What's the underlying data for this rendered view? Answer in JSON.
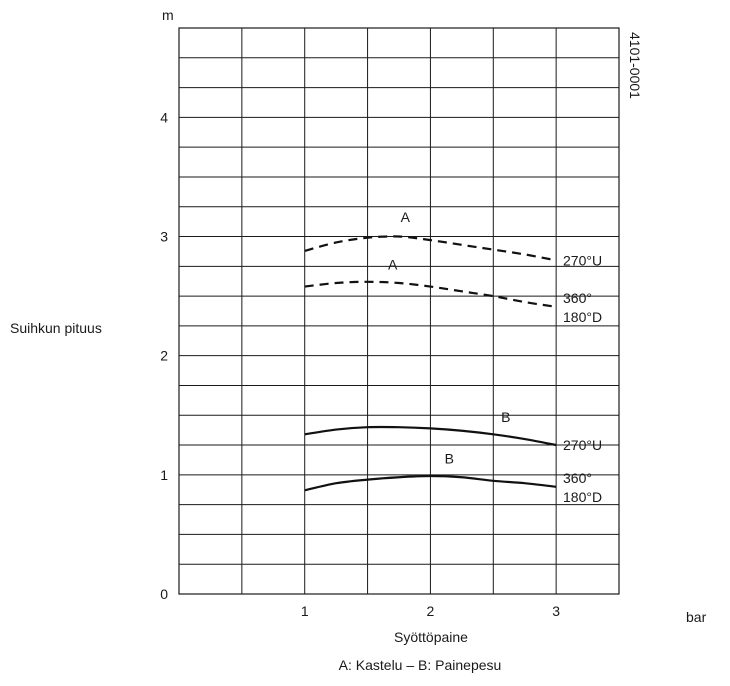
{
  "chart_data": {
    "type": "line",
    "y_unit": "m",
    "ylabel": "Suihkun pituus",
    "x_unit": "bar",
    "xlabel": "Syöttöpaine",
    "caption": "A: Kastelu – B: Painepesu",
    "code": "4101-0001",
    "xlim": [
      0,
      3.5
    ],
    "ylim": [
      0,
      4.75
    ],
    "x_ticks": [
      "1",
      "2",
      "3"
    ],
    "y_ticks": [
      "0",
      "1",
      "2",
      "3",
      "4"
    ],
    "grid": true,
    "series": [
      {
        "curve_label": "A",
        "end_label": [
          "270°U"
        ],
        "style": "dashed",
        "x": [
          1.0,
          1.25,
          1.5,
          1.75,
          2.0,
          2.25,
          2.5,
          2.75,
          3.0
        ],
        "y": [
          2.88,
          2.95,
          2.99,
          3.0,
          2.97,
          2.93,
          2.89,
          2.85,
          2.8
        ]
      },
      {
        "curve_label": "A",
        "end_label": [
          "360°",
          "180°D"
        ],
        "style": "dashed",
        "x": [
          1.0,
          1.25,
          1.5,
          1.75,
          2.0,
          2.25,
          2.5,
          2.75,
          3.0
        ],
        "y": [
          2.58,
          2.61,
          2.62,
          2.61,
          2.58,
          2.54,
          2.5,
          2.45,
          2.41
        ]
      },
      {
        "curve_label": "B",
        "end_label": [
          "270°U"
        ],
        "style": "solid",
        "x": [
          1.0,
          1.25,
          1.5,
          1.75,
          2.0,
          2.25,
          2.5,
          2.75,
          3.0
        ],
        "y": [
          1.34,
          1.38,
          1.4,
          1.4,
          1.39,
          1.37,
          1.34,
          1.3,
          1.25
        ]
      },
      {
        "curve_label": "B",
        "end_label": [
          "360°",
          "180°D"
        ],
        "style": "solid",
        "x": [
          1.0,
          1.25,
          1.5,
          1.75,
          2.0,
          2.25,
          2.5,
          2.75,
          3.0
        ],
        "y": [
          0.87,
          0.93,
          0.96,
          0.98,
          0.99,
          0.98,
          0.95,
          0.93,
          0.9
        ]
      }
    ]
  }
}
